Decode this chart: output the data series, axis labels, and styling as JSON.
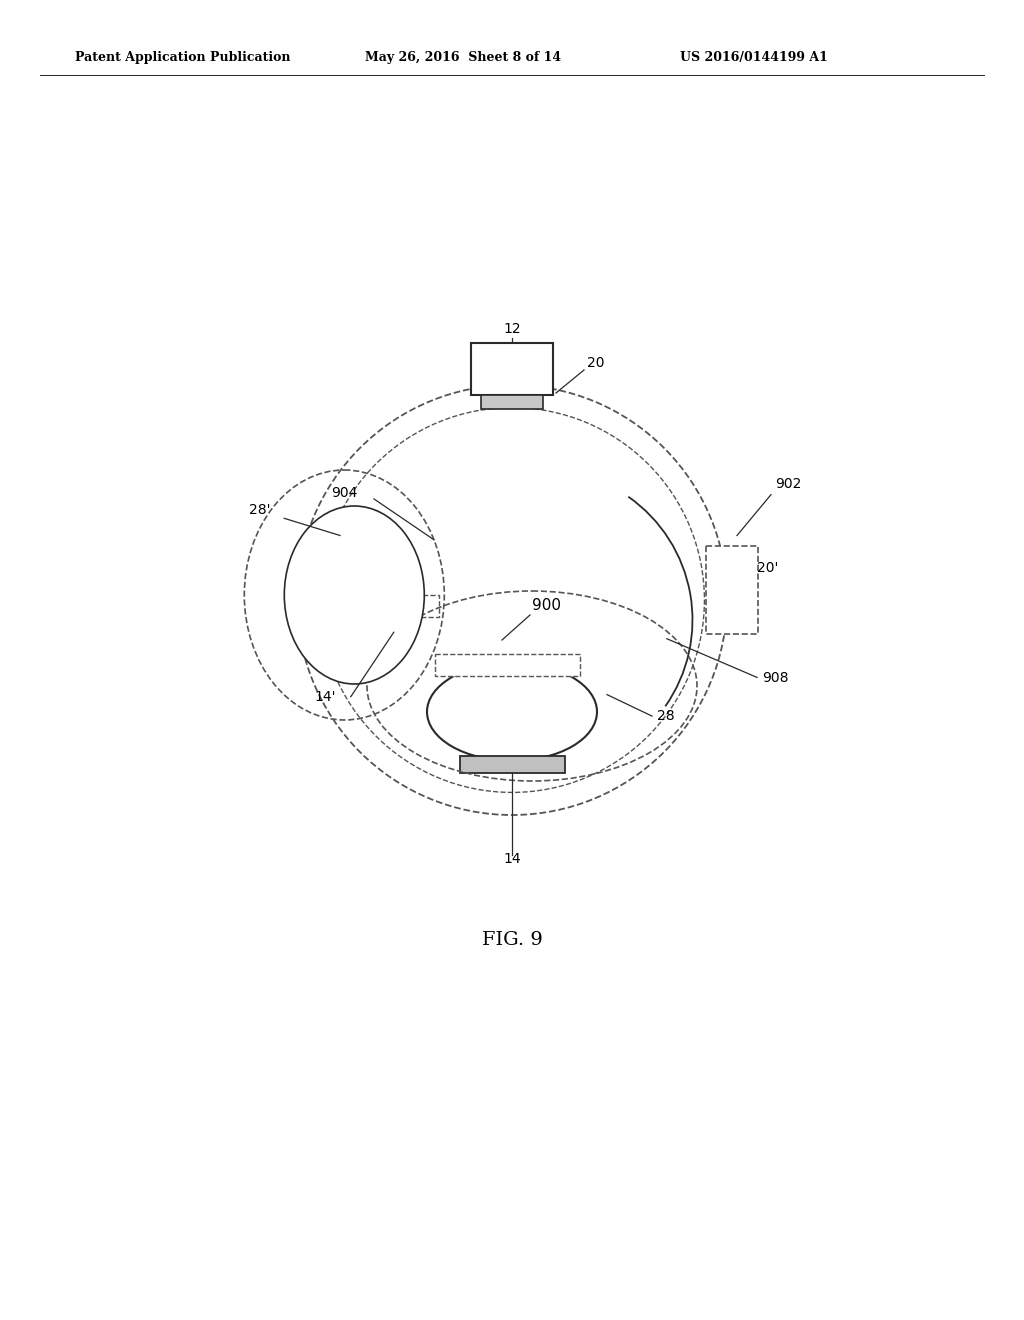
{
  "title_left": "Patent Application Publication",
  "title_mid": "May 26, 2016  Sheet 8 of 14",
  "title_right": "US 2016/0144199 A1",
  "fig_label": "FIG. 9",
  "bg_color": "#ffffff",
  "line_color": "#2a2a2a",
  "dashed_color": "#555555"
}
